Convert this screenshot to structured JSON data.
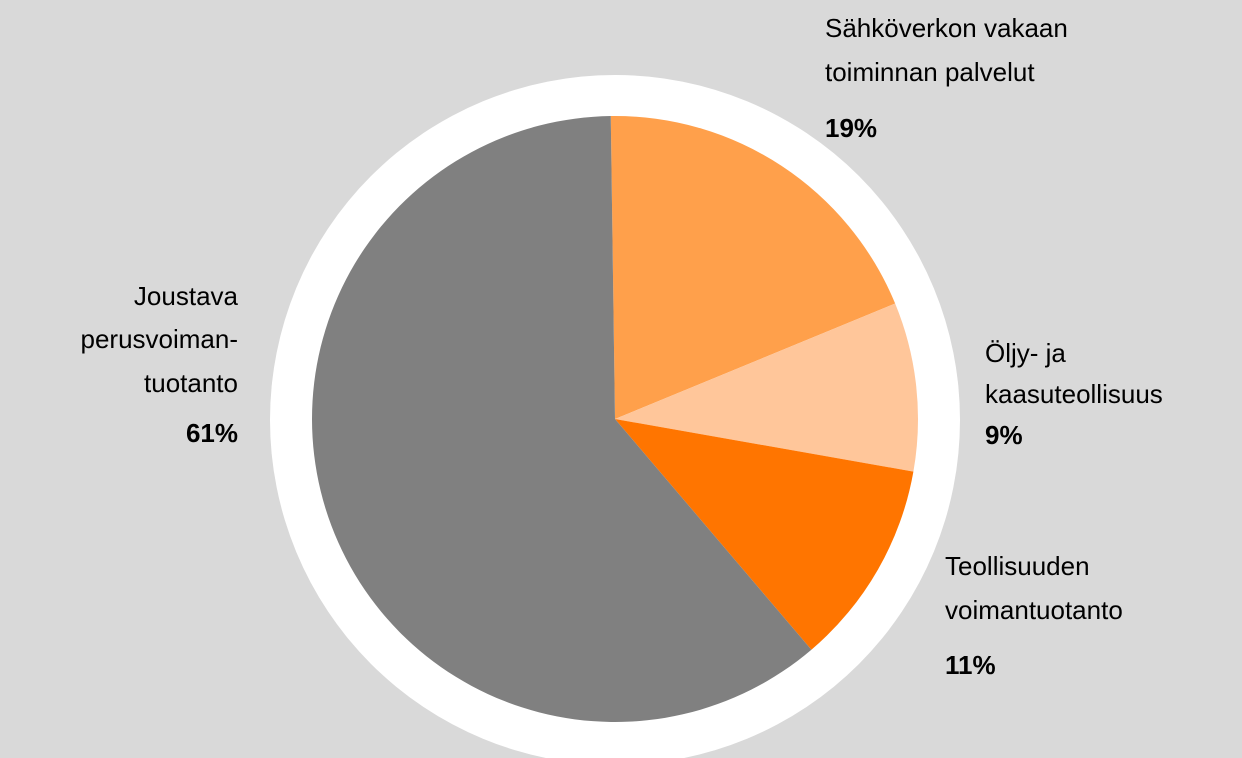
{
  "chart_data": {
    "type": "pie",
    "categories": [
      [
        "Sähköverkon vakaan",
        "toiminnan palvelut"
      ],
      [
        "Öljy- ja",
        "kaasuteollisuus"
      ],
      [
        "Teollisuuden",
        "voimantuotanto"
      ],
      [
        "Joustava",
        "perusvoiman-",
        "tuotanto"
      ]
    ],
    "values": [
      19,
      9,
      11,
      61
    ],
    "value_labels": [
      "19%",
      "9%",
      "11%",
      "61%"
    ],
    "colors": [
      "#ffa04b",
      "#ffc69a",
      "#ff7500",
      "#808080"
    ]
  }
}
